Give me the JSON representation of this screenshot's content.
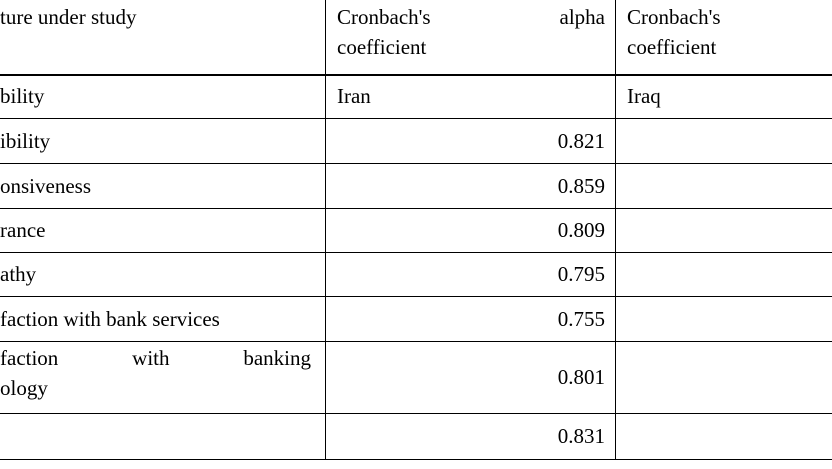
{
  "header": {
    "col1": "ture under study",
    "col2": [
      "Cronbach's alpha",
      "coefficient"
    ],
    "col3": [
      "Cronbach's",
      "coefficient"
    ]
  },
  "rows": [
    {
      "label": "bility",
      "col2": "Iran",
      "col3": "Iraq"
    },
    {
      "label": "ibility",
      "col2": 0.821
    },
    {
      "label": "onsiveness",
      "col2": 0.859
    },
    {
      "label": "rance",
      "col2": 0.809
    },
    {
      "label": "athy",
      "col2": 0.795
    },
    {
      "label": "faction with bank services",
      "col2": 0.755
    },
    {
      "label": [
        "faction with banking",
        "ology"
      ],
      "col2": 0.801
    },
    {
      "col2": 0.831
    }
  ]
}
